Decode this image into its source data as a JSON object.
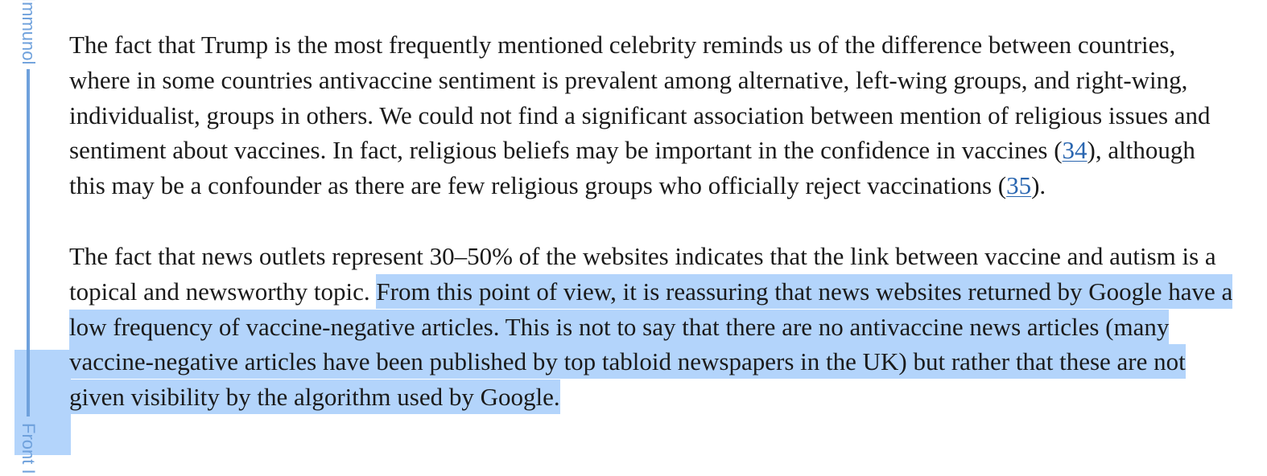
{
  "rail": {
    "top_label": "Immunol",
    "bottom_label": "Front I",
    "accent_color": "#6fa1dc"
  },
  "selection_color": "#b3d4fb",
  "link_color": "#2a66b0",
  "paragraph1": {
    "text_a": "The fact that Trump is the most frequently mentioned celebrity reminds us of the difference between countries, where in some countries antivaccine sentiment is prevalent among alternative, left-wing groups, and right-wing, individualist, groups in others. We could not find a significant association between mention of religious issues and sentiment about vaccines. In fact, religious beliefs may be important in the confidence in vaccines (",
    "ref1": "34",
    "text_b": "), although this may be a confounder as there are few religious groups who officially reject vaccinations (",
    "ref2": "35",
    "text_c": ")."
  },
  "paragraph2": {
    "text_plain": "The fact that news outlets represent 30–50% of the websites indicates that the link between vaccine and autism is a topical and newsworthy topic. ",
    "text_selected": "From this point of view, it is reassuring that news websites returned by Google have a low frequency of vaccine-negative articles. This is not to say that there are no antivaccine news articles (many vaccine-negative articles have been published by top tabloid newspapers in the UK) but rather that these are not given visibility by the algorithm used by Google."
  }
}
